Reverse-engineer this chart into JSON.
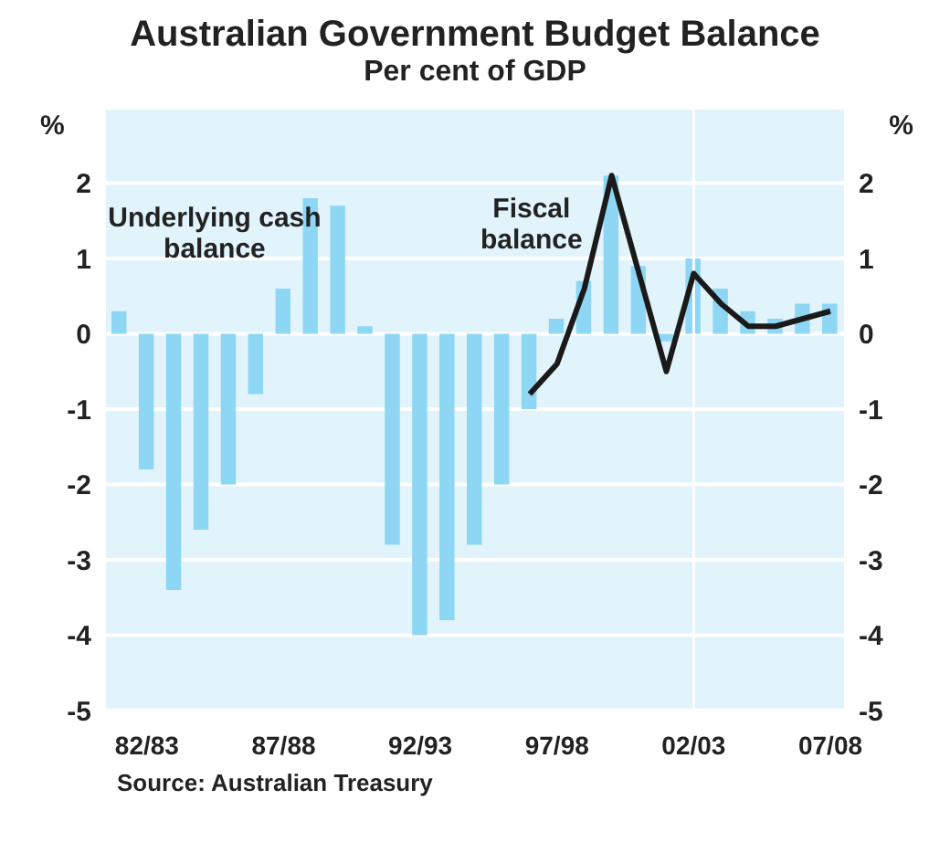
{
  "chart_data": {
    "type": "bar",
    "title": "Australian Government Budget Balance",
    "subtitle": "Per cent of GDP",
    "ylabel": "%",
    "y2label": "%",
    "categories": [
      null,
      "82/83",
      null,
      null,
      null,
      null,
      "87/88",
      null,
      null,
      null,
      null,
      "92/93",
      null,
      null,
      null,
      null,
      "97/98",
      null,
      null,
      null,
      null,
      "02/03",
      null,
      null,
      null,
      null,
      "07/08"
    ],
    "series": [
      {
        "name": "Underlying cash balance",
        "color": "#8dd7f5",
        "values": [
          0.3,
          -1.8,
          -3.4,
          -2.6,
          -2.0,
          -0.8,
          0.6,
          1.8,
          1.7,
          0.1,
          -2.8,
          -4.0,
          -3.8,
          -2.8,
          -2.0,
          -1.0,
          0.2,
          0.7,
          2.1,
          0.9,
          -0.1,
          1.0,
          0.6,
          0.3,
          0.2,
          0.4,
          0.4
        ]
      },
      {
        "name": "Fiscal balance",
        "type": "line",
        "color": "#1a1a1a",
        "values": [
          null,
          null,
          null,
          null,
          null,
          null,
          null,
          null,
          null,
          null,
          null,
          null,
          null,
          null,
          null,
          -0.8,
          -0.4,
          0.6,
          2.1,
          0.8,
          -0.5,
          0.8,
          0.4,
          0.1,
          0.1,
          0.2,
          0.3
        ]
      }
    ],
    "ylim": [
      -5,
      3
    ],
    "yticks": [
      -5,
      -4,
      -3,
      -2,
      -1,
      0,
      1,
      2
    ],
    "y2lim": [
      -5,
      3
    ],
    "y2ticks": [
      -5,
      -4,
      -3,
      -2,
      -1,
      0,
      1,
      2
    ],
    "grid": "y",
    "legend": false,
    "marker": "none",
    "line_style": "solid",
    "ref_lines": [
      {
        "axis": "x",
        "value": "02/03",
        "color": "#ffffff"
      }
    ],
    "annotations": [
      "Source: Australian Treasury"
    ]
  }
}
